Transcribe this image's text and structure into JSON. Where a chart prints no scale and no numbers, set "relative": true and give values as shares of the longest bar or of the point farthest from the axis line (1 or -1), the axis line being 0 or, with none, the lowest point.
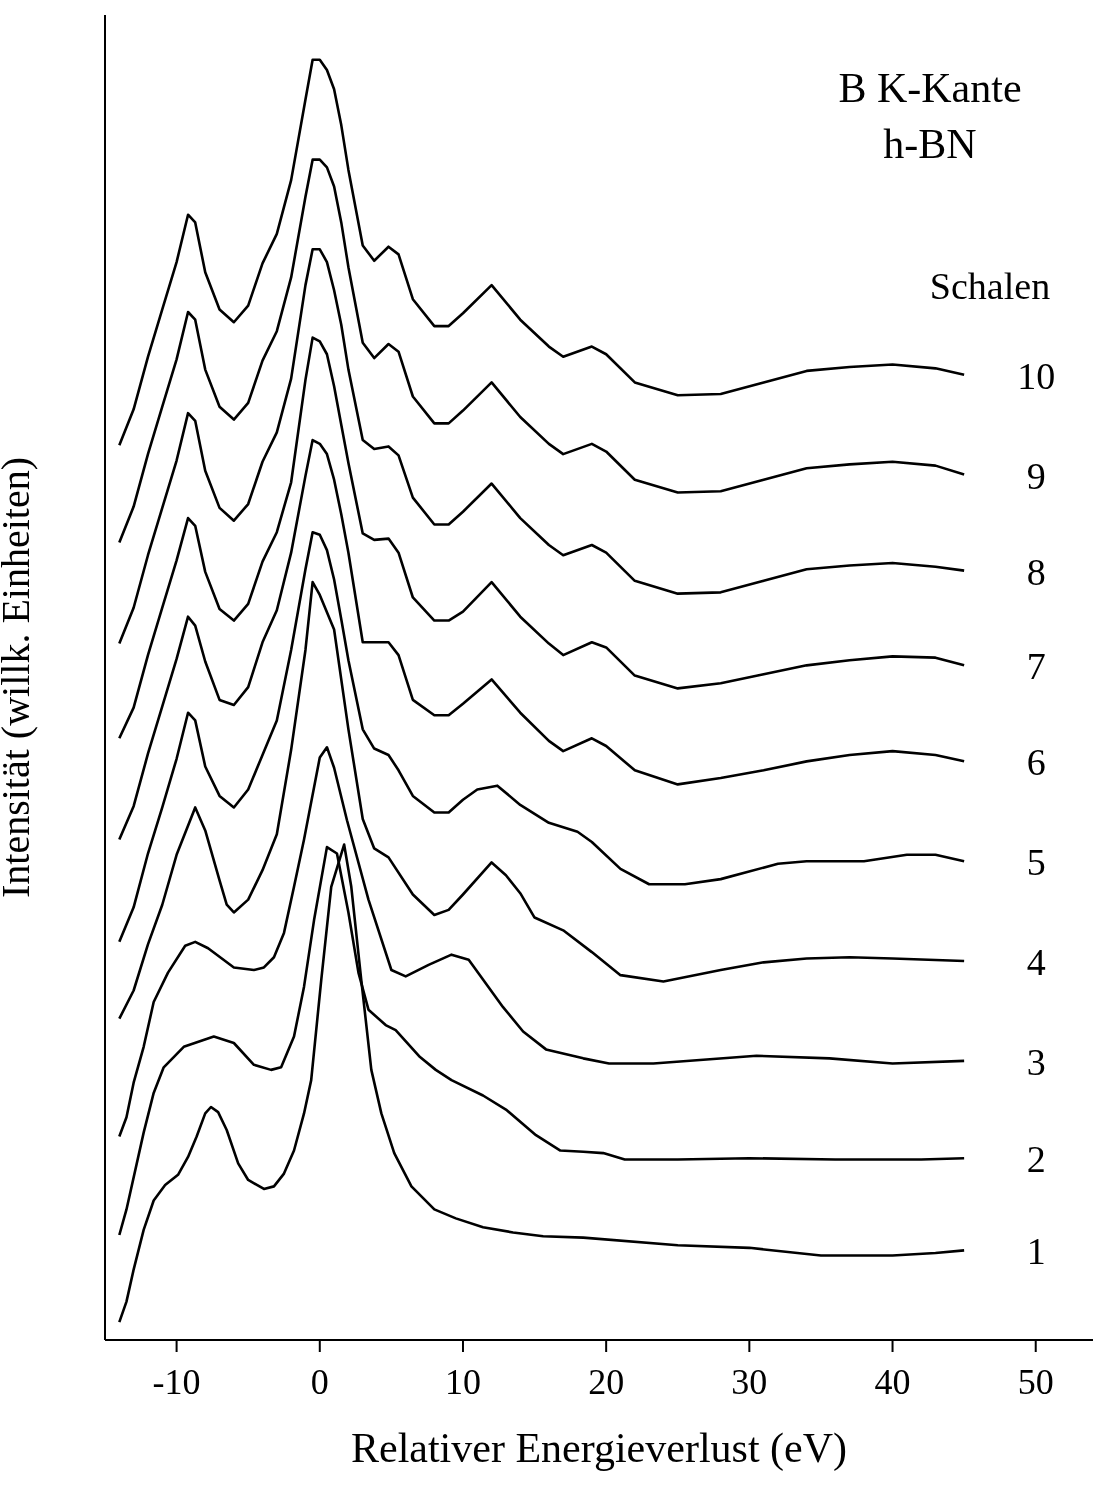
{
  "chart_data": {
    "type": "line",
    "title": "B K-Kante",
    "subtitle": "h-BN",
    "xlabel": "Relativer Energieverlust (eV)",
    "ylabel": "Intensität (willk. Einheiten)",
    "legend_title": "Schalen",
    "relative": true,
    "marker": "none",
    "line_style": "solid",
    "xlim": [
      -15,
      54
    ],
    "xticks": [
      -10,
      0,
      10,
      20,
      30,
      40,
      50
    ],
    "series": [
      {
        "name": "1",
        "color": "#000000",
        "x": [
          -14,
          -13.5,
          -13,
          -12.3,
          -11.6,
          -10.8,
          -9.9,
          -9.2,
          -8.6,
          -8,
          -7.6,
          -7.1,
          -6.5,
          -5.7,
          -5,
          -3.9,
          -3.2,
          -2.5,
          -1.8,
          -1.1,
          -0.6,
          0.1,
          0.8,
          1.7,
          2.2,
          2.9,
          3.6,
          4.3,
          5.2,
          6.4,
          8,
          9.5,
          11.4,
          13.5,
          15.6,
          18.4,
          25,
          30,
          35,
          40,
          43,
          45
        ],
        "values": [
          0.014,
          0.03,
          0.055,
          0.086,
          0.109,
          0.121,
          0.129,
          0.143,
          0.159,
          0.177,
          0.182,
          0.178,
          0.164,
          0.138,
          0.125,
          0.118,
          0.12,
          0.13,
          0.148,
          0.177,
          0.203,
          0.281,
          0.354,
          0.387,
          0.354,
          0.281,
          0.211,
          0.177,
          0.146,
          0.12,
          0.102,
          0.095,
          0.088,
          0.084,
          0.081,
          0.08,
          0.074,
          0.072,
          0.066,
          0.066,
          0.068,
          0.07
        ]
      },
      {
        "name": "2",
        "color": "#000000",
        "x": [
          -14,
          -13.5,
          -12.3,
          -11.6,
          -10.9,
          -9.5,
          -7.4,
          -6,
          -4.6,
          -3.4,
          -2.7,
          -1.8,
          -1.1,
          -0.4,
          0.5,
          1.2,
          2,
          2.7,
          3.4,
          4.6,
          5.3,
          7,
          8.1,
          9.2,
          11.4,
          13,
          15.1,
          16.8,
          18.4,
          19.8,
          21.3,
          25,
          30,
          36,
          42,
          45
        ],
        "values": [
          0.082,
          0.102,
          0.162,
          0.193,
          0.213,
          0.229,
          0.237,
          0.232,
          0.215,
          0.211,
          0.213,
          0.237,
          0.276,
          0.328,
          0.385,
          0.38,
          0.334,
          0.287,
          0.258,
          0.246,
          0.242,
          0.221,
          0.211,
          0.203,
          0.191,
          0.18,
          0.16,
          0.148,
          0.147,
          0.146,
          0.141,
          0.141,
          0.142,
          0.141,
          0.141,
          0.142
        ]
      },
      {
        "name": "3",
        "color": "#000000",
        "x": [
          -14,
          -13.5,
          -13,
          -12.3,
          -11.6,
          -10.6,
          -9.4,
          -8.7,
          -7.8,
          -6,
          -4.6,
          -3.9,
          -3.2,
          -2.5,
          -1.8,
          -1.1,
          0,
          0.5,
          1,
          1.9,
          3.4,
          5,
          6,
          7.6,
          9.2,
          10.4,
          12.8,
          14.2,
          15.8,
          18.4,
          20.2,
          23.3,
          30.5,
          35.6,
          40,
          45
        ],
        "values": [
          0.159,
          0.174,
          0.201,
          0.229,
          0.264,
          0.287,
          0.308,
          0.311,
          0.306,
          0.291,
          0.289,
          0.291,
          0.299,
          0.318,
          0.354,
          0.391,
          0.455,
          0.463,
          0.447,
          0.406,
          0.344,
          0.289,
          0.284,
          0.293,
          0.301,
          0.297,
          0.26,
          0.241,
          0.227,
          0.22,
          0.216,
          0.216,
          0.222,
          0.22,
          0.216,
          0.218
        ]
      },
      {
        "name": "4",
        "color": "#000000",
        "x": [
          -14,
          -13,
          -12,
          -11,
          -10,
          -8.7,
          -8,
          -7,
          -6.5,
          -6,
          -5,
          -4,
          -3,
          -2,
          -1,
          -0.5,
          0,
          1,
          2,
          3,
          3.8,
          4.8,
          6.5,
          8,
          9,
          10,
          12,
          13,
          14,
          15,
          17,
          19,
          21,
          24,
          28,
          31,
          34,
          37,
          40,
          45
        ],
        "values": [
          0.251,
          0.273,
          0.309,
          0.34,
          0.379,
          0.416,
          0.398,
          0.359,
          0.34,
          0.334,
          0.344,
          0.367,
          0.395,
          0.461,
          0.539,
          0.592,
          0.582,
          0.555,
          0.477,
          0.407,
          0.384,
          0.377,
          0.348,
          0.332,
          0.336,
          0.348,
          0.373,
          0.363,
          0.349,
          0.33,
          0.32,
          0.303,
          0.285,
          0.28,
          0.289,
          0.295,
          0.298,
          0.299,
          0.298,
          0.296
        ]
      },
      {
        "name": "5",
        "color": "#000000",
        "x": [
          -14,
          -13,
          -12,
          -11,
          -10,
          -9.2,
          -8.7,
          -8,
          -7,
          -6,
          -5,
          -4,
          -3,
          -2,
          -1,
          -0.5,
          0,
          0.5,
          1,
          1.5,
          2,
          3,
          3.8,
          4.8,
          5.5,
          6.5,
          8,
          9,
          10,
          11,
          12.4,
          14,
          16,
          18,
          19,
          21,
          23,
          25.5,
          28,
          32,
          34,
          38,
          41,
          43,
          45
        ],
        "values": [
          0.311,
          0.338,
          0.38,
          0.416,
          0.454,
          0.49,
          0.484,
          0.448,
          0.425,
          0.416,
          0.43,
          0.457,
          0.484,
          0.539,
          0.602,
          0.631,
          0.629,
          0.617,
          0.594,
          0.563,
          0.531,
          0.477,
          0.462,
          0.457,
          0.445,
          0.425,
          0.412,
          0.412,
          0.422,
          0.43,
          0.433,
          0.418,
          0.404,
          0.397,
          0.389,
          0.368,
          0.356,
          0.356,
          0.36,
          0.372,
          0.374,
          0.374,
          0.379,
          0.379,
          0.374
        ]
      },
      {
        "name": "6",
        "color": "#000000",
        "x": [
          -14,
          -13,
          -12,
          -11,
          -10,
          -9.2,
          -8.7,
          -8,
          -7,
          -6,
          -5,
          -4,
          -3,
          -2,
          -1,
          -0.5,
          0,
          0.5,
          1,
          1.5,
          2,
          3,
          3.8,
          4.8,
          5.5,
          6.5,
          8,
          9,
          10,
          12,
          14,
          16,
          17,
          19,
          20,
          22,
          25,
          28,
          31,
          34,
          37,
          40,
          43,
          45
        ],
        "values": [
          0.391,
          0.417,
          0.458,
          0.495,
          0.532,
          0.565,
          0.558,
          0.53,
          0.5,
          0.496,
          0.51,
          0.545,
          0.57,
          0.615,
          0.675,
          0.703,
          0.7,
          0.692,
          0.672,
          0.645,
          0.615,
          0.545,
          0.545,
          0.545,
          0.535,
          0.5,
          0.488,
          0.488,
          0.497,
          0.516,
          0.49,
          0.468,
          0.46,
          0.47,
          0.464,
          0.445,
          0.434,
          0.439,
          0.445,
          0.452,
          0.457,
          0.46,
          0.457,
          0.452
        ]
      },
      {
        "name": "7",
        "color": "#000000",
        "x": [
          -14,
          -13,
          -12,
          -11,
          -10,
          -9.2,
          -8.7,
          -8,
          -7,
          -6,
          -5,
          -4,
          -3,
          -2,
          -1,
          -0.5,
          0,
          0.5,
          1,
          1.5,
          2,
          3,
          3.8,
          4.8,
          5.5,
          6.5,
          8,
          9,
          10,
          12,
          14,
          16,
          17,
          19,
          20,
          22,
          25,
          28,
          31,
          34,
          37,
          40,
          43,
          45
        ],
        "values": [
          0.47,
          0.494,
          0.535,
          0.572,
          0.609,
          0.642,
          0.636,
          0.6,
          0.571,
          0.562,
          0.575,
          0.608,
          0.631,
          0.67,
          0.75,
          0.783,
          0.78,
          0.77,
          0.745,
          0.715,
          0.685,
          0.63,
          0.625,
          0.626,
          0.615,
          0.58,
          0.562,
          0.562,
          0.569,
          0.592,
          0.565,
          0.544,
          0.535,
          0.545,
          0.541,
          0.519,
          0.509,
          0.513,
          0.52,
          0.527,
          0.531,
          0.534,
          0.533,
          0.527
        ]
      },
      {
        "name": "8",
        "color": "#000000",
        "x": [
          -14,
          -13,
          -12,
          -11,
          -10,
          -9.2,
          -8.7,
          -8,
          -7,
          -6,
          -5,
          -4,
          -3,
          -2,
          -1,
          -0.5,
          0,
          0.5,
          1,
          1.5,
          2,
          3,
          3.8,
          4.8,
          5.5,
          6.5,
          8,
          9,
          10,
          12,
          14,
          16,
          17,
          19,
          20,
          22,
          25,
          28,
          31,
          34,
          37,
          40,
          43,
          45
        ],
        "values": [
          0.544,
          0.572,
          0.613,
          0.65,
          0.687,
          0.724,
          0.718,
          0.679,
          0.65,
          0.64,
          0.653,
          0.686,
          0.709,
          0.751,
          0.824,
          0.852,
          0.852,
          0.842,
          0.82,
          0.793,
          0.758,
          0.703,
          0.696,
          0.698,
          0.691,
          0.658,
          0.637,
          0.637,
          0.647,
          0.669,
          0.642,
          0.621,
          0.613,
          0.621,
          0.615,
          0.593,
          0.583,
          0.584,
          0.593,
          0.602,
          0.605,
          0.607,
          0.604,
          0.601
        ]
      },
      {
        "name": "9",
        "color": "#000000",
        "x": [
          -14,
          -13,
          -12,
          -11,
          -10,
          -9.2,
          -8.7,
          -8,
          -7,
          -6,
          -5,
          -4,
          -3,
          -2,
          -1,
          -0.5,
          0,
          0.5,
          1,
          1.5,
          2,
          3,
          3.8,
          4.8,
          5.5,
          6.5,
          8,
          9,
          10,
          12,
          14,
          16,
          17,
          19,
          20,
          22,
          25,
          28,
          31,
          34,
          37,
          40,
          43,
          45
        ],
        "values": [
          0.623,
          0.651,
          0.692,
          0.729,
          0.766,
          0.803,
          0.797,
          0.758,
          0.729,
          0.719,
          0.732,
          0.765,
          0.788,
          0.83,
          0.893,
          0.922,
          0.922,
          0.916,
          0.901,
          0.873,
          0.838,
          0.779,
          0.767,
          0.778,
          0.772,
          0.737,
          0.716,
          0.716,
          0.726,
          0.748,
          0.721,
          0.7,
          0.692,
          0.7,
          0.694,
          0.672,
          0.662,
          0.663,
          0.672,
          0.681,
          0.684,
          0.686,
          0.683,
          0.676
        ]
      },
      {
        "name": "10",
        "color": "#000000",
        "x": [
          -14,
          -13,
          -12,
          -11,
          -10,
          -9.2,
          -8.7,
          -8,
          -7,
          -6,
          -5,
          -4,
          -3,
          -2,
          -1,
          -0.5,
          0,
          0.5,
          1,
          1.5,
          2,
          3,
          3.8,
          4.8,
          5.5,
          6.5,
          8,
          9,
          10,
          12,
          14,
          16,
          17,
          19,
          20,
          22,
          25,
          28,
          31,
          34,
          37,
          40,
          43,
          45
        ],
        "values": [
          0.699,
          0.727,
          0.768,
          0.805,
          0.842,
          0.879,
          0.873,
          0.834,
          0.805,
          0.795,
          0.808,
          0.841,
          0.864,
          0.906,
          0.969,
          1,
          1,
          0.992,
          0.977,
          0.949,
          0.914,
          0.855,
          0.843,
          0.854,
          0.848,
          0.813,
          0.792,
          0.792,
          0.802,
          0.824,
          0.797,
          0.776,
          0.768,
          0.776,
          0.77,
          0.748,
          0.738,
          0.739,
          0.748,
          0.757,
          0.76,
          0.762,
          0.759,
          0.754
        ]
      }
    ]
  }
}
